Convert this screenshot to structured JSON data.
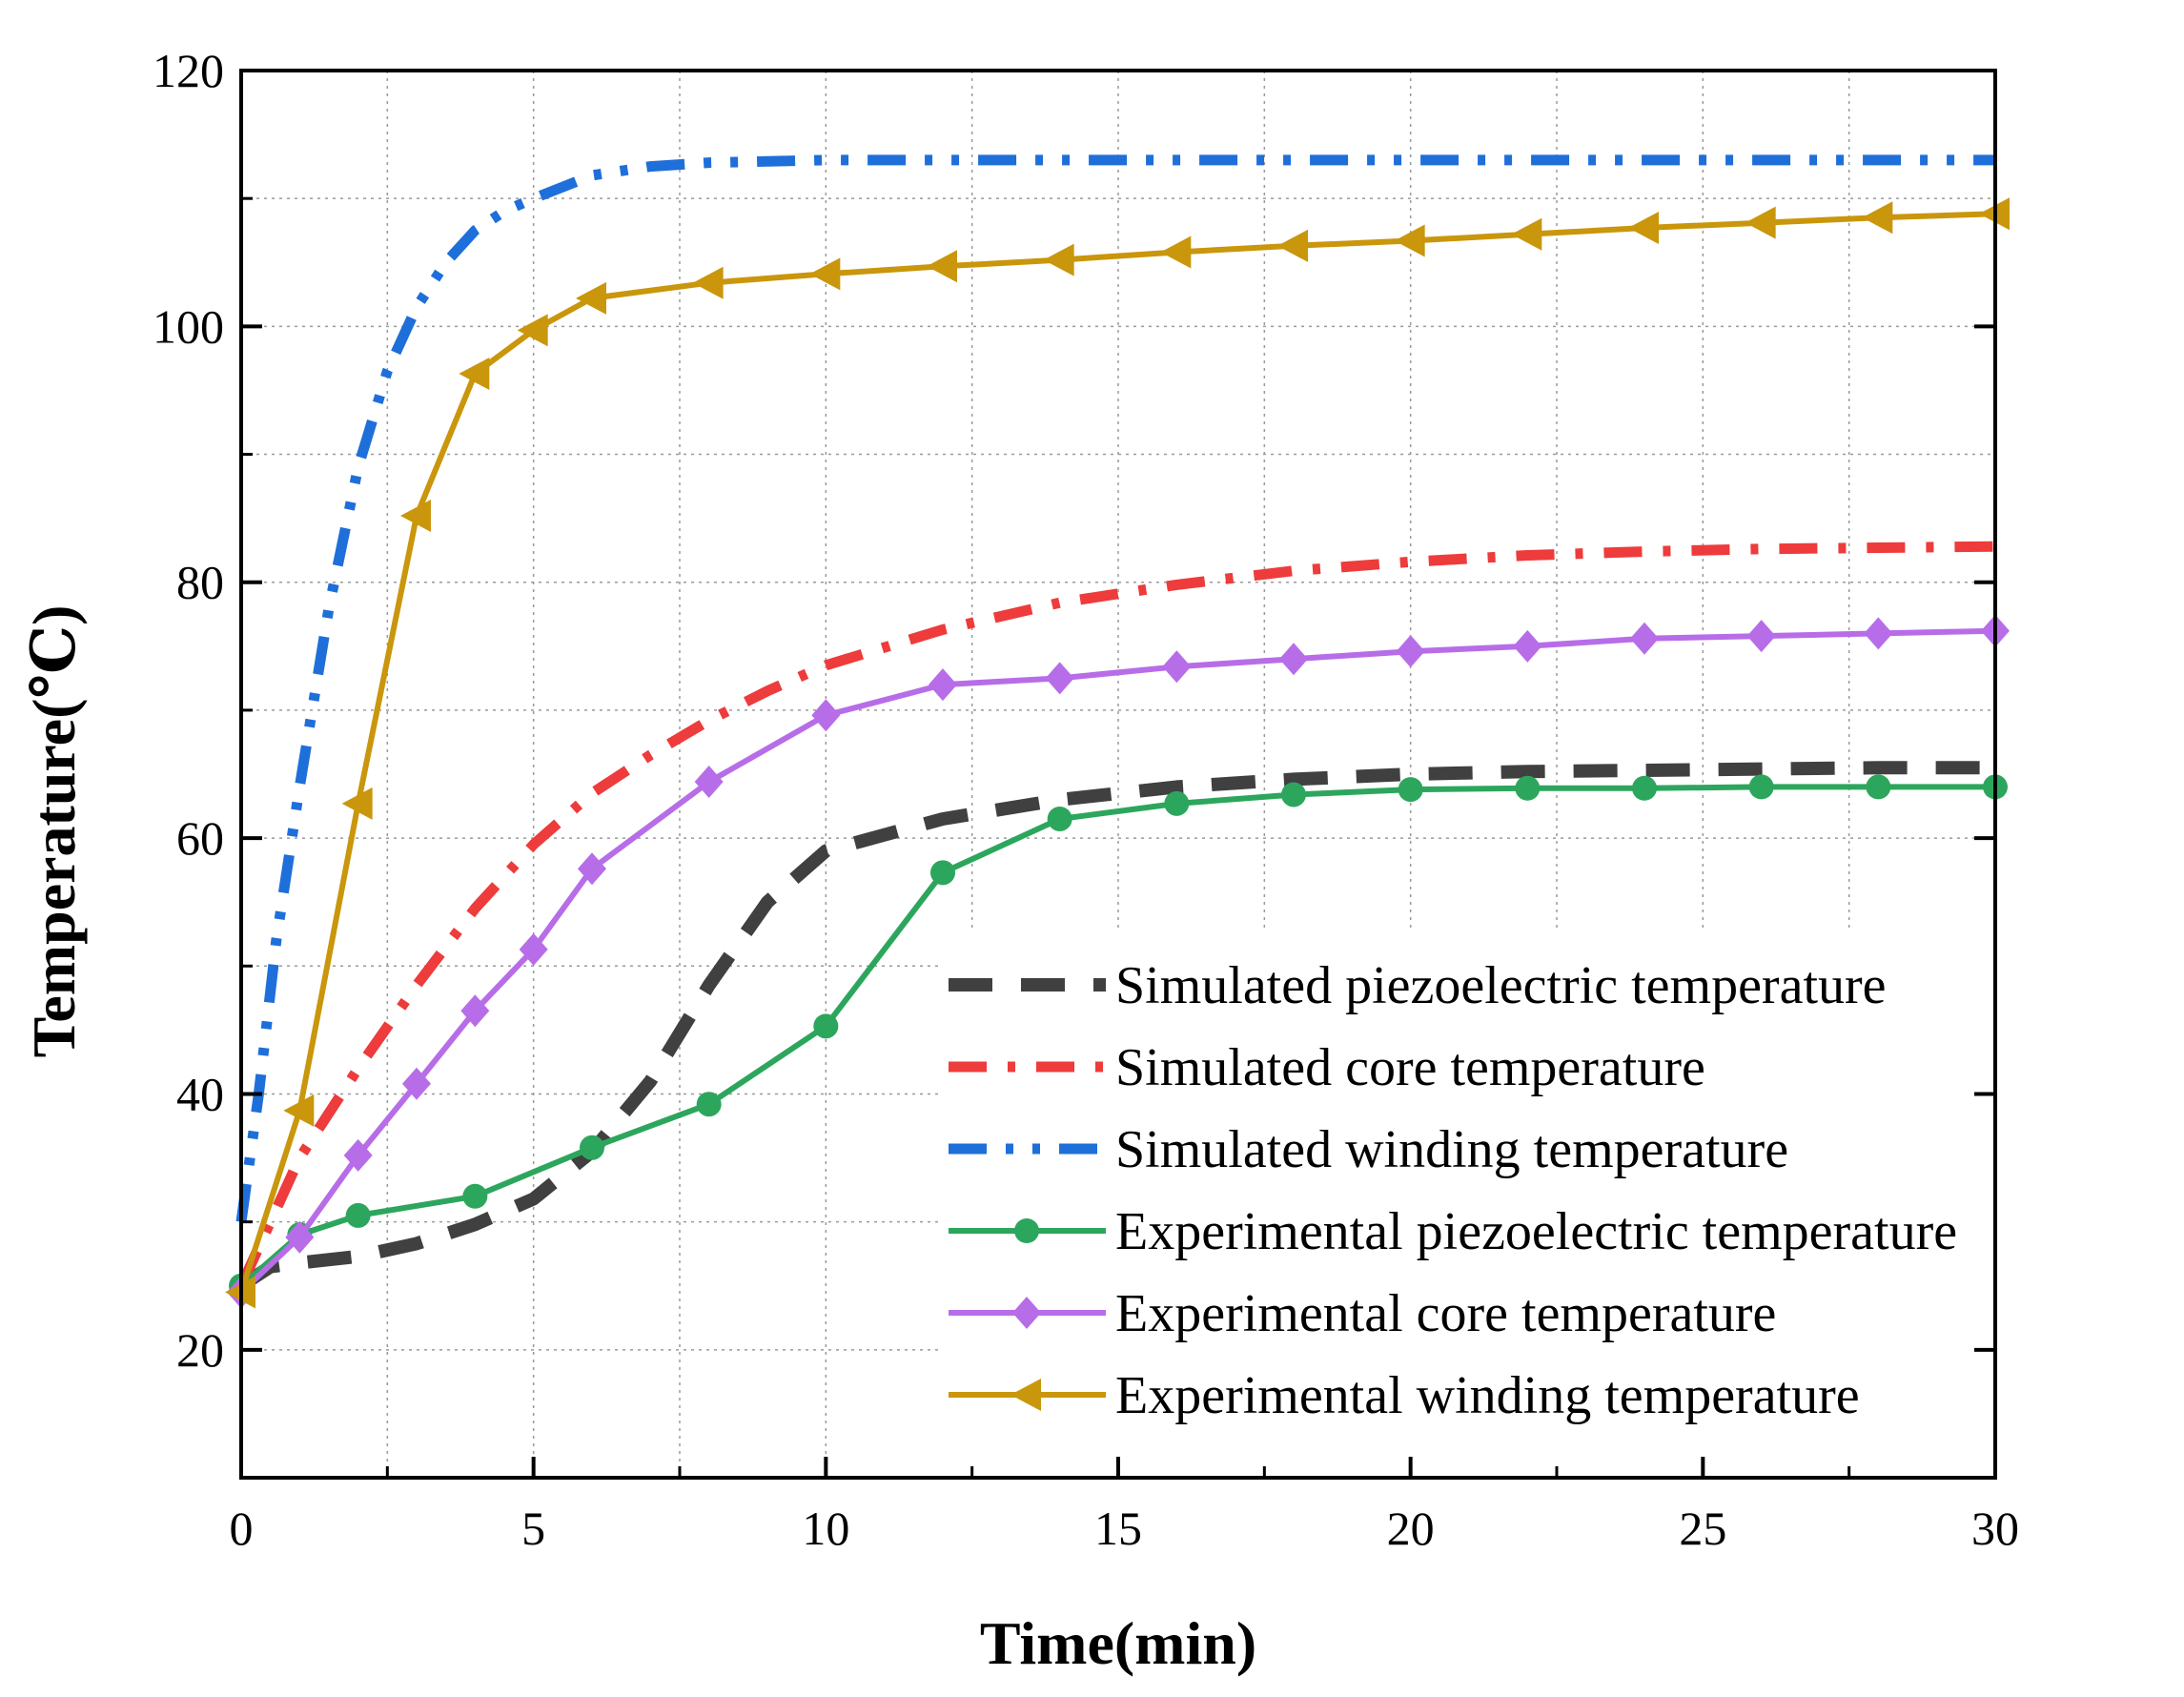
{
  "chart_data": {
    "type": "line",
    "title": "",
    "xlabel": "Time(min)",
    "ylabel": "Temperature(℃)",
    "xlim": [
      0,
      30
    ],
    "ylim": [
      10,
      120
    ],
    "xticks": [
      0,
      5,
      10,
      15,
      20,
      25,
      30
    ],
    "yticks": [
      20,
      40,
      60,
      80,
      100,
      120
    ],
    "grid": true,
    "legend_position": "bottom-right",
    "series": [
      {
        "name": "Simulated piezoelectric temperature",
        "color": "#404040",
        "style": "dash",
        "marker": "none",
        "x": [
          0,
          0.5,
          1,
          2,
          3,
          4,
          5,
          6,
          7,
          8,
          9,
          10,
          12,
          14,
          16,
          18,
          20,
          22,
          24,
          26,
          28,
          30
        ],
        "y": [
          25,
          26.5,
          26.8,
          27.3,
          28.3,
          29.8,
          31.8,
          35.5,
          41,
          48.5,
          55,
          59,
          61.5,
          63,
          64,
          64.6,
          65,
          65.2,
          65.3,
          65.4,
          65.5,
          65.5
        ]
      },
      {
        "name": "Simulated core temperature",
        "color": "#ee3b3b",
        "style": "dashdot",
        "marker": "none",
        "x": [
          0,
          0.5,
          1,
          2,
          3,
          4,
          5,
          6,
          7,
          8,
          9,
          10,
          12,
          14,
          16,
          18,
          20,
          22,
          24,
          26,
          28,
          30
        ],
        "y": [
          25,
          30,
          35,
          42,
          48.5,
          54.5,
          59.5,
          63.5,
          66.5,
          69.2,
          71.5,
          73.5,
          76.3,
          78.4,
          79.8,
          80.9,
          81.6,
          82.1,
          82.4,
          82.6,
          82.7,
          82.8
        ]
      },
      {
        "name": "Simulated winding temperature",
        "color": "#1e6fd9",
        "style": "dashdotdot",
        "marker": "none",
        "x": [
          0,
          0.3,
          0.6,
          1,
          1.5,
          2,
          2.5,
          3,
          3.5,
          4,
          4.5,
          5,
          6,
          7,
          8,
          9,
          10,
          12,
          14,
          16,
          18,
          20,
          22,
          24,
          26,
          28,
          30
        ],
        "y": [
          30,
          40,
          52,
          64,
          78,
          89,
          96.5,
          101.5,
          105,
          107.5,
          109,
          110,
          111.8,
          112.5,
          112.8,
          112.9,
          113,
          113,
          113,
          113,
          113,
          113,
          113,
          113,
          113,
          113,
          113
        ]
      },
      {
        "name": "Experimental piezoelectric temperature",
        "color": "#2da65d",
        "style": "solid",
        "marker": "circle",
        "x": [
          0,
          1,
          2,
          4,
          6,
          8,
          10,
          12,
          14,
          16,
          18,
          20,
          22,
          24,
          26,
          28,
          30
        ],
        "y": [
          25,
          29,
          30.5,
          32,
          35.8,
          39.2,
          45.3,
          57.3,
          61.5,
          62.7,
          63.4,
          63.8,
          63.9,
          63.9,
          64,
          64,
          64
        ]
      },
      {
        "name": "Experimental core temperature",
        "color": "#b76de8",
        "style": "solid",
        "marker": "diamond",
        "x": [
          0,
          1,
          2,
          3,
          4,
          5,
          6,
          8,
          10,
          12,
          14,
          16,
          18,
          20,
          22,
          24,
          26,
          28,
          30
        ],
        "y": [
          24.5,
          28.8,
          35.2,
          40.8,
          46.5,
          51.3,
          57.6,
          64.4,
          69.6,
          72,
          72.5,
          73.4,
          74,
          74.6,
          75,
          75.6,
          75.8,
          76,
          76.2
        ]
      },
      {
        "name": "Experimental winding temperature",
        "color": "#c9960c",
        "style": "solid",
        "marker": "triangle-left",
        "x": [
          0,
          1,
          2,
          3,
          4,
          5,
          6,
          8,
          10,
          12,
          14,
          16,
          18,
          20,
          22,
          24,
          26,
          28,
          30
        ],
        "y": [
          24.5,
          38.7,
          62.7,
          85.2,
          96.3,
          99.7,
          102.2,
          103.4,
          104.1,
          104.7,
          105.2,
          105.8,
          106.3,
          106.7,
          107.2,
          107.7,
          108.1,
          108.5,
          108.8
        ]
      }
    ]
  }
}
